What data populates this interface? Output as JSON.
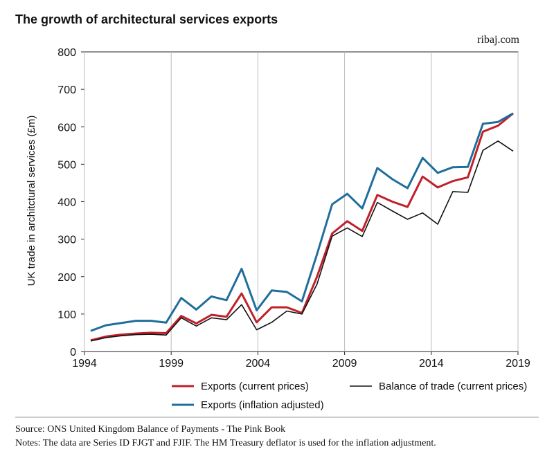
{
  "chart_data": {
    "type": "line",
    "title": "The growth of architectural services exports",
    "subtitle": "ribaj.com",
    "y_label": "UK trade in architctural services (£m)",
    "x": [
      1994.36,
      1995.23,
      1996.1,
      1996.97,
      1997.84,
      1998.71,
      1999.58,
      2000.45,
      2001.32,
      2002.19,
      2003.06,
      2003.93,
      2004.8,
      2005.67,
      2006.54,
      2007.41,
      2008.28,
      2009.15,
      2010.02,
      2010.89,
      2011.76,
      2012.63,
      2013.5,
      2014.37,
      2015.24,
      2016.11,
      2016.98,
      2017.85,
      2018.72
    ],
    "series": [
      {
        "name": "Exports (current prices)",
        "color": "#c0202a",
        "width": 3,
        "values": [
          30,
          40,
          45,
          48,
          50,
          49,
          95,
          75,
          98,
          93,
          155,
          78,
          118,
          118,
          103,
          200,
          315,
          348,
          322,
          418,
          400,
          386,
          467,
          438,
          455,
          465,
          587,
          603,
          636
        ]
      },
      {
        "name": "Balance of trade (current prices)",
        "color": "#111111",
        "width": 1.6,
        "values": [
          28,
          37,
          42,
          45,
          46,
          44,
          90,
          68,
          90,
          85,
          125,
          58,
          78,
          108,
          100,
          180,
          308,
          330,
          307,
          398,
          375,
          353,
          370,
          340,
          427,
          425,
          537,
          562,
          535
        ]
      },
      {
        "name": "Exports (inflation adjusted)",
        "color": "#1f6e9c",
        "width": 3,
        "values": [
          55,
          70,
          76,
          82,
          82,
          77,
          143,
          112,
          147,
          137,
          221,
          110,
          163,
          159,
          134,
          260,
          393,
          421,
          382,
          490,
          460,
          436,
          517,
          477,
          492,
          493,
          608,
          613,
          636
        ]
      }
    ],
    "xlim": [
      1994,
      2019
    ],
    "xticks": [
      1994,
      1999,
      2004,
      2009,
      2014,
      2019
    ],
    "ylim": [
      0,
      800
    ],
    "yticks": [
      0,
      100,
      200,
      300,
      400,
      500,
      600,
      700,
      800
    ],
    "grid": "x",
    "source": "Source: ONS United Kingdom Balance of Payments - The Pink Book",
    "notes": "Notes: The data are Series ID FJGT and FJIF. The HM Treasury deflator is used for the inflation adjustment."
  }
}
